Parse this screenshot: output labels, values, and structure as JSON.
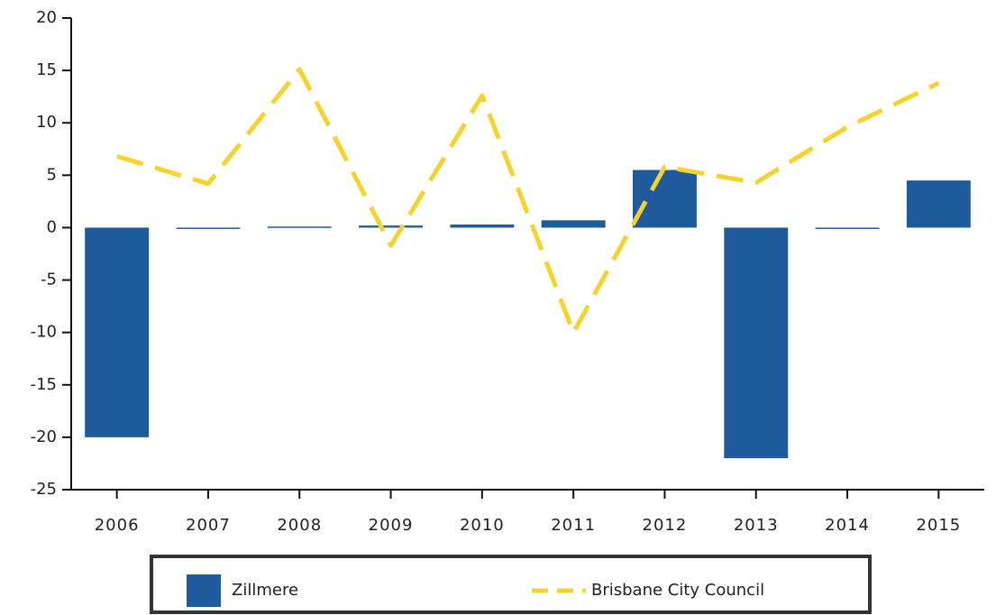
{
  "chart_data": {
    "type": "bar_line",
    "categories": [
      "2006",
      "2007",
      "2008",
      "2009",
      "2010",
      "2011",
      "2012",
      "2013",
      "2014",
      "2015"
    ],
    "series": [
      {
        "name": "Zillmere",
        "type": "bar",
        "color": "#1f5b9c",
        "values": [
          -20,
          0,
          0.1,
          0.2,
          0.3,
          0.7,
          5.5,
          -22,
          0,
          4.5
        ]
      },
      {
        "name": "Brisbane City Council",
        "type": "line",
        "color": "#f6d32b",
        "dashed": true,
        "values": [
          6.8,
          4.2,
          15.1,
          -1.7,
          12.6,
          -10,
          5.8,
          4.3,
          9.6,
          13.8
        ]
      }
    ],
    "ylim": [
      -25,
      20
    ],
    "yticks": [
      -25,
      -20,
      -15,
      -10,
      -5,
      0,
      5,
      10,
      15,
      20
    ],
    "grid": false,
    "legend": "bottom"
  }
}
